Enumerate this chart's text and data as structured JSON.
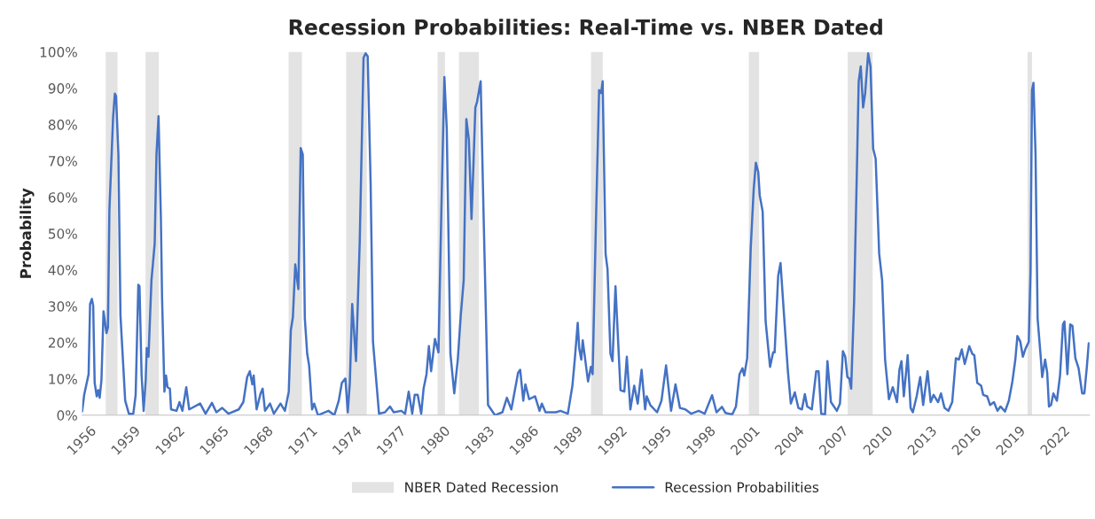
{
  "chart_data": {
    "type": "line",
    "title": "Recession Probabilities: Real-Time vs. NBER Dated",
    "ylabel": "Probability",
    "x": [
      1956.0,
      1956.14,
      1956.44,
      1956.54,
      1956.66,
      1956.75,
      1956.85,
      1956.99,
      1957.09,
      1957.19,
      1957.31,
      1957.45,
      1957.65,
      1957.75,
      1957.85,
      1958.1,
      1958.22,
      1958.3,
      1958.46,
      1958.6,
      1958.92,
      1959.17,
      1959.47,
      1959.63,
      1959.81,
      1959.89,
      1960.03,
      1960.17,
      1960.31,
      1960.38,
      1960.5,
      1960.7,
      1960.92,
      1961.04,
      1961.18,
      1961.34,
      1961.42,
      1961.58,
      1961.69,
      1961.79,
      1961.95,
      1962.03,
      1962.4,
      1962.6,
      1962.8,
      1963.06,
      1963.26,
      1964.0,
      1964.37,
      1964.8,
      1965.1,
      1965.5,
      1965.92,
      1966.62,
      1966.93,
      1967.19,
      1967.37,
      1967.54,
      1967.63,
      1967.83,
      1968.1,
      1968.24,
      1968.4,
      1968.74,
      1969.0,
      1969.45,
      1969.75,
      1970.01,
      1970.15,
      1970.29,
      1970.45,
      1970.66,
      1970.82,
      1970.96,
      1971.1,
      1971.26,
      1971.39,
      1971.59,
      1971.73,
      1971.99,
      1972.7,
      1973.1,
      1973.4,
      1973.61,
      1973.85,
      1974.01,
      1974.15,
      1974.31,
      1974.57,
      1974.82,
      1975.08,
      1975.22,
      1975.36,
      1975.56,
      1975.72,
      1976.13,
      1976.53,
      1976.87,
      1977.13,
      1977.64,
      1977.9,
      1978.14,
      1978.38,
      1978.55,
      1978.75,
      1978.99,
      1979.15,
      1979.35,
      1979.51,
      1979.66,
      1979.92,
      1980.16,
      1980.36,
      1980.56,
      1980.72,
      1980.97,
      1981.23,
      1981.47,
      1981.67,
      1981.87,
      1982.05,
      1982.22,
      1982.4,
      1982.52,
      1982.66,
      1982.78,
      1983.02,
      1983.22,
      1983.52,
      1983.99,
      1984.49,
      1984.8,
      1985.1,
      1985.56,
      1985.7,
      1985.91,
      1986.05,
      1986.31,
      1986.71,
      1987.01,
      1987.17,
      1987.42,
      1988.12,
      1988.43,
      1988.93,
      1989.24,
      1989.4,
      1989.6,
      1989.7,
      1989.84,
      1989.94,
      1990.3,
      1990.49,
      1990.61,
      1990.85,
      1991.05,
      1991.19,
      1991.29,
      1991.49,
      1991.62,
      1991.82,
      1991.96,
      1992.16,
      1992.5,
      1992.76,
      1992.93,
      1993.17,
      1993.43,
      1993.67,
      1993.93,
      1994.17,
      1994.28,
      1994.52,
      1994.98,
      1995.28,
      1995.59,
      1995.93,
      1996.23,
      1996.53,
      1996.9,
      1997.3,
      1997.8,
      1998.21,
      1998.71,
      1999.01,
      1999.38,
      1999.62,
      2000.08,
      2000.33,
      2000.57,
      2000.77,
      2000.89,
      2001.09,
      2001.33,
      2001.53,
      2001.68,
      2001.84,
      2001.94,
      2002.14,
      2002.34,
      2002.64,
      2002.85,
      2002.95,
      2003.19,
      2003.35,
      2003.55,
      2003.85,
      2004.05,
      2004.32,
      2004.56,
      2004.8,
      2005.0,
      2005.16,
      2005.47,
      2005.77,
      2005.93,
      2006.11,
      2006.37,
      2006.53,
      2006.77,
      2007.17,
      2007.38,
      2007.58,
      2007.74,
      2007.88,
      2008.02,
      2008.14,
      2008.34,
      2008.55,
      2008.65,
      2008.79,
      2008.95,
      2009.09,
      2009.29,
      2009.45,
      2009.63,
      2009.8,
      2010.04,
      2010.24,
      2010.44,
      2010.7,
      2010.96,
      2011.25,
      2011.41,
      2011.55,
      2011.71,
      2011.97,
      2012.17,
      2012.32,
      2012.58,
      2012.82,
      2013.02,
      2013.32,
      2013.53,
      2013.73,
      2014.03,
      2014.23,
      2014.47,
      2014.73,
      2014.99,
      2015.24,
      2015.44,
      2015.64,
      2015.84,
      2016.15,
      2016.35,
      2016.49,
      2016.69,
      2016.95,
      2017.09,
      2017.36,
      2017.56,
      2017.82,
      2018.06,
      2018.26,
      2018.57,
      2018.83,
      2019.07,
      2019.27,
      2019.41,
      2019.61,
      2019.78,
      2019.94,
      2020.18,
      2020.3,
      2020.4,
      2020.5,
      2020.64,
      2020.78,
      2020.99,
      2021.09,
      2021.29,
      2021.43,
      2021.55,
      2021.69,
      2021.85,
      2022.09,
      2022.3,
      2022.5,
      2022.6,
      2022.8,
      2022.99,
      2023.14,
      2023.34,
      2023.56,
      2023.8,
      2023.95,
      2024.11,
      2024.25
    ],
    "series": [
      {
        "name": "Recession Probabilities",
        "color": "#4472c4",
        "values": [
          1,
          5.6,
          11.3,
          30.6,
          32,
          30.2,
          8.9,
          5.2,
          6.9,
          4.8,
          9.7,
          28.6,
          22.6,
          24.2,
          56.5,
          82,
          88.5,
          87.9,
          71.8,
          27.4,
          4,
          0.4,
          0.4,
          5.6,
          35.9,
          35.5,
          11.3,
          1.2,
          9.7,
          18.5,
          16.1,
          37.1,
          47.2,
          71.8,
          82.3,
          54,
          32.3,
          6.5,
          10.9,
          7.7,
          7.3,
          1.6,
          1.2,
          3.6,
          1.2,
          7.7,
          1.6,
          3.2,
          0.4,
          3.4,
          0.8,
          2,
          0.4,
          1.6,
          3.6,
          10.5,
          12.1,
          8.5,
          10.9,
          1.6,
          6,
          7.3,
          1.2,
          3.2,
          0.4,
          3.2,
          1.2,
          6.5,
          23.4,
          27,
          41.5,
          34.7,
          73.5,
          71.8,
          26.6,
          16.9,
          13.7,
          1.6,
          3.2,
          0,
          1.2,
          0,
          4,
          8.9,
          10.1,
          0.8,
          8.9,
          30.6,
          14.9,
          47.6,
          98.4,
          99.6,
          98.8,
          63.7,
          20.2,
          0.4,
          0.8,
          2.4,
          0.8,
          1.2,
          0.4,
          6.5,
          0.4,
          5.6,
          5.6,
          0.4,
          7.3,
          11.3,
          19,
          12.1,
          21,
          17.3,
          57.3,
          93.1,
          79,
          16.9,
          6,
          15.3,
          27.4,
          37.1,
          81.5,
          75.8,
          54,
          67.7,
          84.7,
          86.3,
          91.9,
          54.8,
          2.8,
          0,
          0.8,
          4.8,
          1.6,
          11.7,
          12.5,
          4,
          8.5,
          4.4,
          5.2,
          1.2,
          3.2,
          0.8,
          0.8,
          1.2,
          0.4,
          8.1,
          15.3,
          25.4,
          18.5,
          15.3,
          20.6,
          9.3,
          13.3,
          11.3,
          55.6,
          89.5,
          88.7,
          91.9,
          44.4,
          40.3,
          16.9,
          14.9,
          35.5,
          6.9,
          6.5,
          16.1,
          1.6,
          8.1,
          3.2,
          12.5,
          1.6,
          5.2,
          2.8,
          0.8,
          4,
          13.7,
          1.2,
          8.5,
          2,
          1.6,
          0.4,
          1.2,
          0.4,
          5.5,
          0.8,
          2.3,
          0.6,
          0.2,
          2.4,
          11.3,
          12.9,
          10.9,
          15.7,
          46,
          62.1,
          69.5,
          66.9,
          60.5,
          56,
          25.8,
          13.3,
          17.3,
          17.3,
          38.3,
          41.9,
          29.8,
          12.1,
          3.2,
          6.3,
          2,
          1.6,
          5.8,
          2.4,
          1.6,
          12.1,
          12.1,
          0.4,
          0.2,
          14.9,
          3.6,
          1.2,
          3.2,
          17.6,
          16.1,
          10.5,
          10.1,
          7.3,
          31.5,
          71.8,
          91.9,
          96,
          84.7,
          88.7,
          99.6,
          96,
          73.4,
          70.6,
          44.4,
          37.1,
          15.3,
          4.4,
          7.7,
          3.6,
          12.5,
          14.9,
          5.2,
          16.5,
          2,
          0.8,
          5.2,
          10.5,
          2.8,
          12.1,
          3.6,
          5.6,
          3.6,
          6,
          2,
          1.2,
          3.6,
          15.7,
          15.3,
          18.1,
          14.1,
          19,
          16.9,
          16.5,
          8.9,
          8.1,
          5.6,
          5.2,
          2.8,
          3.6,
          1.2,
          2.4,
          1,
          4,
          9.3,
          15.3,
          21.8,
          20.2,
          16.1,
          18.1,
          20.2,
          39.5,
          89.5,
          91.5,
          71.8,
          26.6,
          16.1,
          10.5,
          15.3,
          11.7,
          2.4,
          2.8,
          6,
          4,
          10.9,
          25,
          25.8,
          11.3,
          25,
          24.6,
          15.7,
          12.9,
          6,
          6,
          12.9,
          19.8
        ]
      }
    ],
    "bands": [
      {
        "axis": "x",
        "from": 1957.6,
        "to": 1958.4,
        "label": "NBER Dated Recession",
        "color": "#e3e3e3"
      },
      {
        "axis": "x",
        "from": 1960.3,
        "to": 1961.2,
        "color": "#e3e3e3"
      },
      {
        "axis": "x",
        "from": 1970.0,
        "to": 1970.9,
        "color": "#e3e3e3"
      },
      {
        "axis": "x",
        "from": 1973.9,
        "to": 1975.3,
        "color": "#e3e3e3"
      },
      {
        "axis": "x",
        "from": 1980.1,
        "to": 1980.6,
        "color": "#e3e3e3"
      },
      {
        "axis": "x",
        "from": 1981.55,
        "to": 1982.9,
        "color": "#e3e3e3"
      },
      {
        "axis": "x",
        "from": 1990.5,
        "to": 1991.3,
        "color": "#e3e3e3"
      },
      {
        "axis": "x",
        "from": 2001.2,
        "to": 2001.9,
        "color": "#e3e3e3"
      },
      {
        "axis": "x",
        "from": 2007.9,
        "to": 2009.6,
        "color": "#e3e3e3"
      },
      {
        "axis": "x",
        "from": 2020.1,
        "to": 2020.4,
        "color": "#e3e3e3"
      }
    ],
    "xlim": [
      1956,
      2024.3
    ],
    "xticks": [
      1956,
      1959,
      1962,
      1965,
      1968,
      1971,
      1974,
      1977,
      1980,
      1983,
      1986,
      1989,
      1992,
      1995,
      1998,
      2001,
      2004,
      2007,
      2010,
      2013,
      2016,
      2019,
      2022
    ],
    "ylim": [
      0,
      100
    ],
    "yticks": [
      {
        "value": 0,
        "label": "0%"
      },
      {
        "value": 10,
        "label": "10%"
      },
      {
        "value": 20,
        "label": "20%"
      },
      {
        "value": 30,
        "label": "30%"
      },
      {
        "value": 40,
        "label": "40%"
      },
      {
        "value": 50,
        "label": "50%"
      },
      {
        "value": 60,
        "label": "60%"
      },
      {
        "value": 70,
        "label": "70%"
      },
      {
        "value": 80,
        "label": "80%"
      },
      {
        "value": 90,
        "label": "90%"
      },
      {
        "value": 100,
        "label": "100%"
      }
    ],
    "grid": false,
    "legend": "bottom"
  }
}
